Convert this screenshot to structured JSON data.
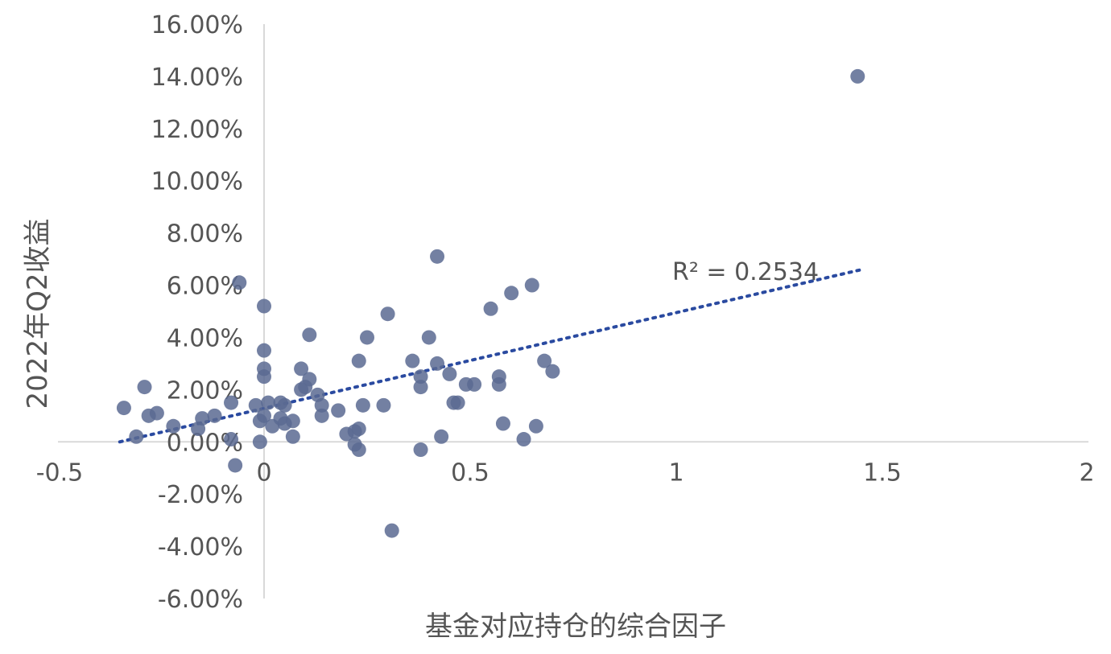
{
  "chart_data": {
    "type": "scatter",
    "title": "",
    "xlabel": "基金对应持仓的综合因子",
    "ylabel": "2022年Q2收益",
    "xlim": [
      -0.5,
      2
    ],
    "ylim": [
      -6,
      16
    ],
    "x_ticks": [
      -0.5,
      0,
      0.5,
      1,
      1.5,
      2
    ],
    "x_tick_labels": [
      "-0.5",
      "0",
      "0.5",
      "1",
      "1.5",
      "2"
    ],
    "y_ticks": [
      -6,
      -4,
      -2,
      0,
      2,
      4,
      6,
      8,
      10,
      12,
      14,
      16
    ],
    "y_tick_labels": [
      "-6.00%",
      "-4.00%",
      "-2.00%",
      "0.00%",
      "2.00%",
      "4.00%",
      "6.00%",
      "8.00%",
      "10.00%",
      "12.00%",
      "14.00%",
      "16.00%"
    ],
    "grid": false,
    "marker_color": "#5a6a92",
    "trendline": {
      "type": "linear",
      "color": "#2a4aa0",
      "style": "dotted",
      "x_range": [
        -0.35,
        1.45
      ],
      "y_range": [
        0.0,
        6.6
      ],
      "r2_label": "R² = 0.2534"
    },
    "series": [
      {
        "points": [
          [
            1.44,
            14.0
          ],
          [
            0.42,
            7.1
          ],
          [
            0.65,
            6.0
          ],
          [
            0.6,
            5.7
          ],
          [
            0.55,
            5.1
          ],
          [
            -0.06,
            6.1
          ],
          [
            0.0,
            5.2
          ],
          [
            0.3,
            4.9
          ],
          [
            0.11,
            4.1
          ],
          [
            0.25,
            4.0
          ],
          [
            0.4,
            4.0
          ],
          [
            0.0,
            3.5
          ],
          [
            0.23,
            3.1
          ],
          [
            0.36,
            3.1
          ],
          [
            0.68,
            3.1
          ],
          [
            0.42,
            3.0
          ],
          [
            0.7,
            2.7
          ],
          [
            0.0,
            2.8
          ],
          [
            0.09,
            2.8
          ],
          [
            0.45,
            2.6
          ],
          [
            0.38,
            2.5
          ],
          [
            0.57,
            2.5
          ],
          [
            0.0,
            2.5
          ],
          [
            0.11,
            2.4
          ],
          [
            0.49,
            2.2
          ],
          [
            0.51,
            2.2
          ],
          [
            0.57,
            2.2
          ],
          [
            0.38,
            2.1
          ],
          [
            0.1,
            2.1
          ],
          [
            -0.29,
            2.1
          ],
          [
            0.09,
            2.0
          ],
          [
            0.13,
            1.8
          ],
          [
            0.46,
            1.5
          ],
          [
            0.47,
            1.5
          ],
          [
            0.24,
            1.4
          ],
          [
            0.29,
            1.4
          ],
          [
            0.01,
            1.5
          ],
          [
            0.04,
            1.5
          ],
          [
            0.05,
            1.4
          ],
          [
            0.14,
            1.4
          ],
          [
            -0.08,
            1.5
          ],
          [
            -0.02,
            1.4
          ],
          [
            -0.34,
            1.3
          ],
          [
            0.18,
            1.2
          ],
          [
            -0.26,
            1.1
          ],
          [
            -0.28,
            1.0
          ],
          [
            -0.12,
            1.0
          ],
          [
            0.14,
            1.0
          ],
          [
            -0.15,
            0.9
          ],
          [
            0.0,
            1.0
          ],
          [
            0.04,
            0.9
          ],
          [
            0.07,
            0.8
          ],
          [
            -0.01,
            0.8
          ],
          [
            0.05,
            0.7
          ],
          [
            0.58,
            0.7
          ],
          [
            0.66,
            0.6
          ],
          [
            -0.22,
            0.6
          ],
          [
            0.02,
            0.6
          ],
          [
            0.23,
            0.5
          ],
          [
            0.22,
            0.4
          ],
          [
            -0.16,
            0.5
          ],
          [
            0.2,
            0.3
          ],
          [
            -0.31,
            0.2
          ],
          [
            0.07,
            0.2
          ],
          [
            0.43,
            0.2
          ],
          [
            -0.08,
            0.1
          ],
          [
            0.63,
            0.1
          ],
          [
            -0.01,
            0.0
          ],
          [
            0.22,
            -0.1
          ],
          [
            0.23,
            -0.3
          ],
          [
            0.38,
            -0.3
          ],
          [
            -0.07,
            -0.9
          ],
          [
            0.31,
            -3.4
          ]
        ]
      }
    ]
  }
}
